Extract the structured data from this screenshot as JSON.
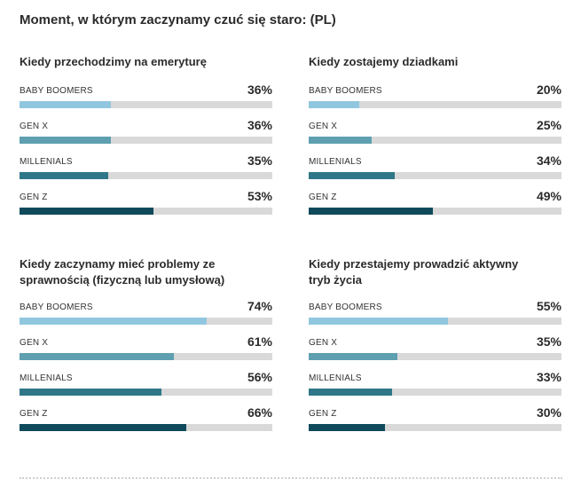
{
  "title": "Moment, w którym zaczynamy czuć się staro: (PL)",
  "colors": {
    "BABY BOOMERS": "#90c7df",
    "GEN X": "#5e9fb0",
    "MILLENIALS": "#2f7688",
    "GEN Z": "#0f4a5b",
    "track": "#d9d9d9"
  },
  "chart_data": [
    {
      "type": "bar",
      "title": "Kiedy przechodzimy na emeryturę",
      "categories": [
        "BABY BOOMERS",
        "GEN X",
        "MILLENIALS",
        "GEN Z"
      ],
      "values": [
        36,
        36,
        35,
        53
      ],
      "labels": [
        "36%",
        "36%",
        "35%",
        "53%"
      ],
      "ylim": [
        0,
        100
      ]
    },
    {
      "type": "bar",
      "title": "Kiedy zostajemy dziadkami",
      "categories": [
        "BABY BOOMERS",
        "GEN X",
        "MILLENIALS",
        "GEN Z"
      ],
      "values": [
        20,
        25,
        34,
        49
      ],
      "labels": [
        "20%",
        "25%",
        "34%",
        "49%"
      ],
      "ylim": [
        0,
        100
      ]
    },
    {
      "type": "bar",
      "title": "Kiedy zaczynamy mieć problemy ze sprawnością (fizyczną lub umysłową)",
      "categories": [
        "BABY BOOMERS",
        "GEN X",
        "MILLENIALS",
        "GEN Z"
      ],
      "values": [
        74,
        61,
        56,
        66
      ],
      "labels": [
        "74%",
        "61%",
        "56%",
        "66%"
      ],
      "ylim": [
        0,
        100
      ]
    },
    {
      "type": "bar",
      "title": "Kiedy przestajemy prowadzić aktywny tryb życia",
      "categories": [
        "BABY BOOMERS",
        "GEN X",
        "MILLENIALS",
        "GEN Z"
      ],
      "values": [
        55,
        35,
        33,
        30
      ],
      "labels": [
        "55%",
        "35%",
        "33%",
        "30%"
      ],
      "ylim": [
        0,
        100
      ]
    }
  ]
}
